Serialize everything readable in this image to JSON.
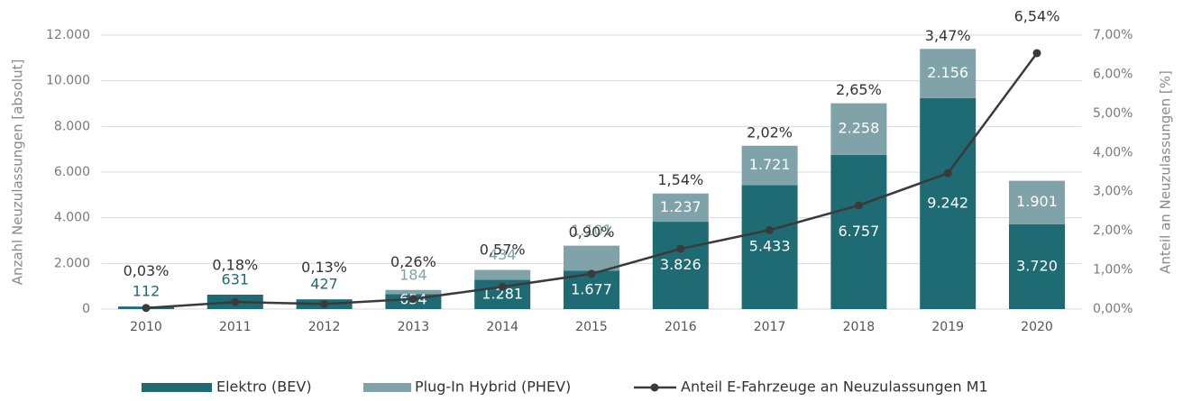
{
  "chart_data": {
    "type": "stacked-bar-line",
    "y_label": "Anzahl Neuzulassungen [absolut]",
    "y2_label": "Anteil an Neuzulassungen [%]",
    "categories": [
      "2010",
      "2011",
      "2012",
      "2013",
      "2014",
      "2015",
      "2016",
      "2017",
      "2018",
      "2019",
      "2020"
    ],
    "series": [
      {
        "name": "Elektro (BEV)",
        "color": "#1f6b73",
        "values": [
          112,
          631,
          427,
          654,
          1281,
          1677,
          3826,
          5433,
          6757,
          9242,
          3720
        ],
        "value_labels": [
          "112",
          "631",
          "427",
          "654",
          "1.281",
          "1.677",
          "3.826",
          "5.433",
          "6.757",
          "9.242",
          "3.720"
        ]
      },
      {
        "name": "Plug-In Hybrid (PHEV)",
        "color": "#7fa3a8",
        "values": [
          null,
          null,
          null,
          184,
          434,
          1101,
          1237,
          1721,
          2258,
          2156,
          1901
        ],
        "value_labels": [
          null,
          null,
          null,
          "184",
          "434",
          "1.101",
          "1.237",
          "1.721",
          "2.258",
          "2.156",
          "1.901"
        ]
      },
      {
        "name": "Anteil E-Fahrzeuge an Neuzulassungen M1",
        "color": "#3a3a3a",
        "axis": "y2",
        "values": [
          0.03,
          0.18,
          0.13,
          0.26,
          0.57,
          0.9,
          1.54,
          2.02,
          2.65,
          3.47,
          6.54
        ],
        "value_labels": [
          "0,03%",
          "0,18%",
          "0,13%",
          "0,26%",
          "0,57%",
          "0,90%",
          "1,54%",
          "2,02%",
          "2,65%",
          "3,47%",
          "6,54%"
        ]
      }
    ],
    "ylim": [
      0,
      12000
    ],
    "yticks": [
      0,
      {
        "value": 2000,
        "label": "2.000"
      },
      {
        "value": 4000,
        "label": "4.000"
      },
      {
        "value": 6000,
        "label": "6.000"
      },
      {
        "value": 8000,
        "label": "8.000"
      },
      {
        "value": 10000,
        "label": "10.000"
      },
      {
        "value": 12000,
        "label": "12.000"
      }
    ],
    "y2lim": [
      0,
      7
    ],
    "y2ticks": [
      {
        "value": 0,
        "label": "0,00%"
      },
      {
        "value": 1,
        "label": "1,00%"
      },
      {
        "value": 2,
        "label": "2,00%"
      },
      {
        "value": 3,
        "label": "3,00%"
      },
      {
        "value": 4,
        "label": "4,00%"
      },
      {
        "value": 5,
        "label": "5,00%"
      },
      {
        "value": 6,
        "label": "6,00%"
      },
      {
        "value": 7,
        "label": "7,00%"
      }
    ],
    "grid": true,
    "legend": "bottom"
  }
}
